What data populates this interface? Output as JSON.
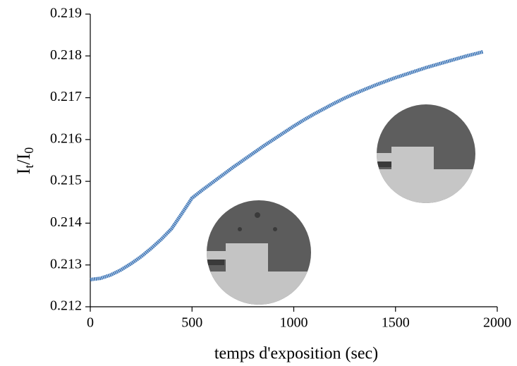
{
  "chart_data": {
    "type": "line",
    "x_label": "temps d'exposition (sec)",
    "y_label": [
      "I",
      "t",
      "/I",
      "0"
    ],
    "xlim": [
      0,
      2000
    ],
    "xticks": [
      0,
      500,
      1000,
      1500,
      2000
    ],
    "ylim": [
      0.212,
      0.219
    ],
    "yticks": [
      0.212,
      0.213,
      0.214,
      0.215,
      0.216,
      0.217,
      0.218,
      0.219
    ],
    "grid": false,
    "x": [
      0,
      50,
      100,
      150,
      200,
      250,
      300,
      350,
      400,
      450,
      500,
      550,
      600,
      650,
      700,
      750,
      800,
      850,
      900,
      950,
      1000,
      1050,
      1100,
      1150,
      1200,
      1250,
      1300,
      1350,
      1400,
      1450,
      1500,
      1550,
      1600,
      1650,
      1700,
      1750,
      1800,
      1850,
      1900,
      1930
    ],
    "series": [
      {
        "color": "#4a7ebb",
        "values": [
          0.21265,
          0.21268,
          0.21276,
          0.21288,
          0.21303,
          0.2132,
          0.2134,
          0.21362,
          0.21387,
          0.21423,
          0.2146,
          0.21479,
          0.21497,
          0.21515,
          0.21533,
          0.2155,
          0.21567,
          0.21584,
          0.216,
          0.21616,
          0.21632,
          0.21647,
          0.21661,
          0.21674,
          0.21687,
          0.21699,
          0.2171,
          0.2172,
          0.2173,
          0.21739,
          0.21748,
          0.21756,
          0.21764,
          0.21772,
          0.21779,
          0.21786,
          0.21793,
          0.218,
          0.21806,
          0.2181
        ]
      }
    ]
  }
}
